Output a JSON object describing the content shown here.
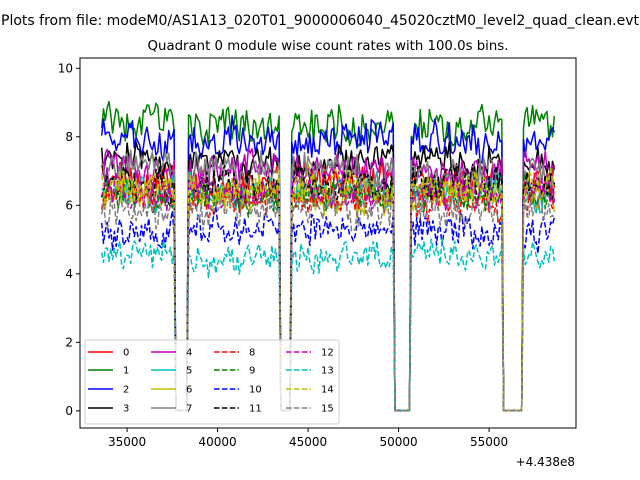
{
  "figure": {
    "suptitle": "Plots from file: modeM0/AS1A13_020T01_9000006040_45020cztM0_level2_quad_clean.evt"
  },
  "chart_data": {
    "type": "line",
    "title": "Quadrant 0 module wise count rates with 100.0s bins.",
    "xlabel": "",
    "ylabel": "",
    "x_offset_label": "+4.438e8",
    "xlim": [
      32400,
      59800
    ],
    "ylim": [
      -0.5,
      10.3
    ],
    "xticks": [
      35000,
      40000,
      45000,
      50000,
      55000
    ],
    "yticks": [
      0,
      2,
      4,
      6,
      8,
      10
    ],
    "x_range": [
      33600,
      58600
    ],
    "bin_width": 100,
    "gaps": [
      [
        37700,
        38300
      ],
      [
        43500,
        44000
      ],
      [
        49800,
        50600
      ],
      [
        55800,
        56800
      ]
    ],
    "grid": false,
    "legend": {
      "placement": "lower-left",
      "columns": 4
    },
    "series": [
      {
        "name": "0",
        "color": "#ff0000",
        "dash": "solid",
        "level": 6.7,
        "noise": 0.45
      },
      {
        "name": "1",
        "color": "#008000",
        "dash": "solid",
        "level": 8.4,
        "noise": 0.45
      },
      {
        "name": "2",
        "color": "#0000ff",
        "dash": "solid",
        "level": 7.9,
        "noise": 0.45
      },
      {
        "name": "3",
        "color": "#000000",
        "dash": "solid",
        "level": 7.3,
        "noise": 0.4
      },
      {
        "name": "4",
        "color": "#bf00bf",
        "dash": "solid",
        "level": 7.1,
        "noise": 0.4
      },
      {
        "name": "5",
        "color": "#00bfbf",
        "dash": "solid",
        "level": 6.4,
        "noise": 0.4
      },
      {
        "name": "6",
        "color": "#bfbf00",
        "dash": "solid",
        "level": 6.3,
        "noise": 0.4
      },
      {
        "name": "7",
        "color": "#808080",
        "dash": "solid",
        "level": 7.0,
        "noise": 0.4
      },
      {
        "name": "8",
        "color": "#ff0000",
        "dash": "dashed",
        "level": 6.2,
        "noise": 0.4
      },
      {
        "name": "9",
        "color": "#008000",
        "dash": "dashed",
        "level": 6.3,
        "noise": 0.4
      },
      {
        "name": "10",
        "color": "#0000ff",
        "dash": "dashed",
        "level": 5.3,
        "noise": 0.4
      },
      {
        "name": "11",
        "color": "#000000",
        "dash": "dashed",
        "level": 6.6,
        "noise": 0.4
      },
      {
        "name": "12",
        "color": "#bf00bf",
        "dash": "dashed",
        "level": 6.4,
        "noise": 0.4
      },
      {
        "name": "13",
        "color": "#00bfbf",
        "dash": "dashed",
        "level": 4.5,
        "noise": 0.35
      },
      {
        "name": "14",
        "color": "#bfbf00",
        "dash": "dashed",
        "level": 6.5,
        "noise": 0.4
      },
      {
        "name": "15",
        "color": "#808080",
        "dash": "dashed",
        "level": 5.9,
        "noise": 0.4
      }
    ]
  }
}
